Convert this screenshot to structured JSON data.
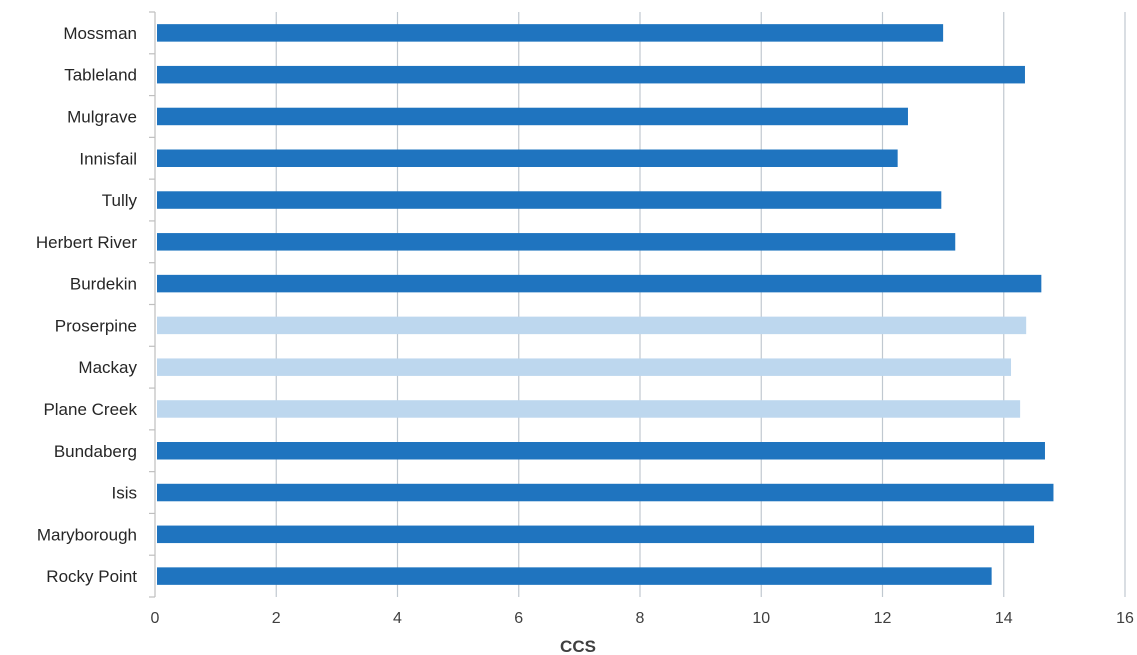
{
  "chart_data": {
    "type": "bar",
    "orientation": "horizontal",
    "title": "",
    "xlabel": "CCS",
    "ylabel": "",
    "xlim": [
      0,
      16
    ],
    "x_ticks": [
      "0",
      "2",
      "4",
      "6",
      "8",
      "10",
      "12",
      "14",
      "16"
    ],
    "grid": "vertical",
    "categories": [
      "Mossman",
      "Tableland",
      "Mulgrave",
      "Innisfail",
      "Tully",
      "Herbert River",
      "Burdekin",
      "Proserpine",
      "Mackay",
      "Plane Creek",
      "Bundaberg",
      "Isis",
      "Maryborough",
      "Rocky Point"
    ],
    "values": [
      13.0,
      14.35,
      12.42,
      12.25,
      12.97,
      13.2,
      14.62,
      14.37,
      14.12,
      14.27,
      14.68,
      14.82,
      14.5,
      13.8
    ],
    "bar_colors": [
      "#1f74bf",
      "#1f74bf",
      "#1f74bf",
      "#1f74bf",
      "#1f74bf",
      "#1f74bf",
      "#1f74bf",
      "#bdd7ee",
      "#bdd7ee",
      "#bdd7ee",
      "#1f74bf",
      "#1f74bf",
      "#1f74bf",
      "#1f74bf"
    ]
  },
  "colors": {
    "bar_dark": "#1f74bf",
    "bar_light": "#bdd7ee",
    "grid": "#c0c8d0",
    "axis": "#bfbfbf"
  }
}
